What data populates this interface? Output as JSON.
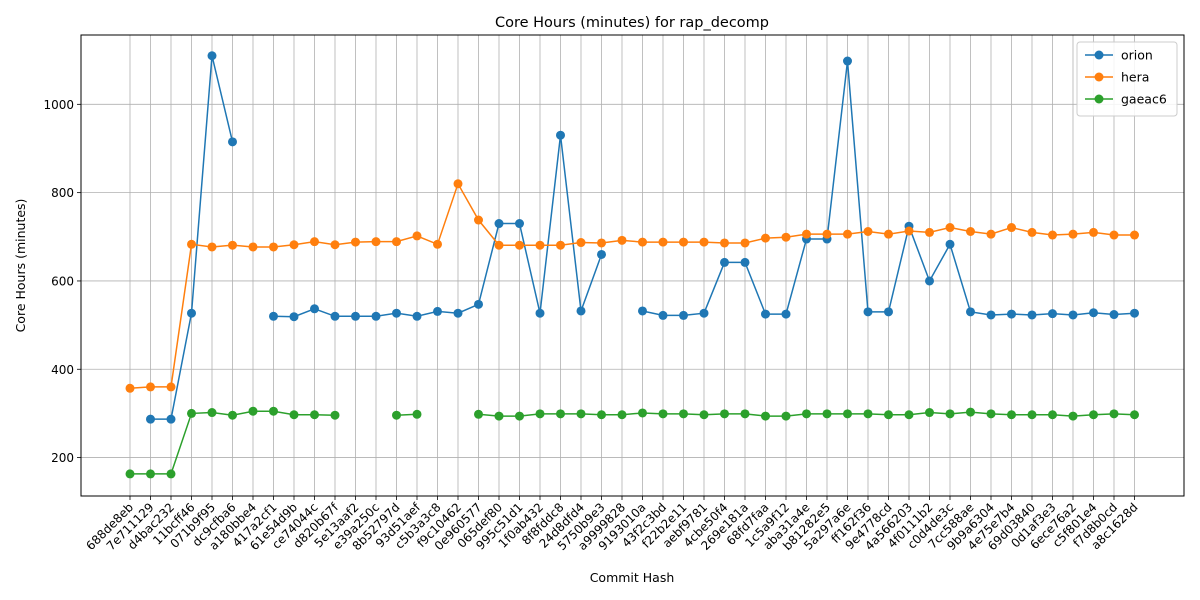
{
  "chart_data": {
    "type": "line",
    "title": "Core Hours (minutes) for rap_decomp",
    "xlabel": "Commit Hash",
    "ylabel": "Core Hours (minutes)",
    "ylim": [
      113,
      1157
    ],
    "yticks": [
      200,
      400,
      600,
      800,
      1000
    ],
    "grid": true,
    "legend_position": "top-right",
    "categories": [
      "688de8eb",
      "7e711129",
      "d4bac232",
      "11bcff46",
      "071b9f95",
      "dc9cfba6",
      "a180bbe4",
      "417a2cf1",
      "61e54d9b",
      "ce74044c",
      "d820b67f",
      "5e13aaf2",
      "e39a250c",
      "8b52797d",
      "93d51aef",
      "c5b3a3c8",
      "f9c10462",
      "0e960577",
      "065def80",
      "995c51d1",
      "1f0ab432",
      "8f8fddc8",
      "24d8dfd4",
      "5750b9e3",
      "a9999828",
      "9193010a",
      "43f2c3bd",
      "f22b2e11",
      "aebf9781",
      "4cbe50f4",
      "269e181a",
      "68fd7faa",
      "1c5a9f12",
      "aba31a4e",
      "b81282e5",
      "5a297a6e",
      "ff162f36",
      "9e4778cd",
      "4a566203",
      "4f0111b2",
      "c0d4de3c",
      "7cc588ae",
      "9b9a6304",
      "4e75e7b4",
      "69d03840",
      "0d1af3e3",
      "6ece76a2",
      "c5f801e4",
      "f7d8b0cd",
      "a8c1628d"
    ],
    "series": [
      {
        "name": "orion",
        "color": "#1f77b4",
        "values": [
          null,
          287,
          287,
          527,
          1110,
          915,
          null,
          520,
          519,
          537,
          520,
          520,
          520,
          527,
          520,
          531,
          527,
          547,
          730,
          730,
          527,
          930,
          532,
          660,
          null,
          532,
          522,
          522,
          527,
          642,
          642,
          525,
          525,
          695,
          695,
          1098,
          530,
          530,
          724,
          600,
          683,
          530,
          523,
          525,
          523,
          526,
          523,
          528,
          524,
          527
        ]
      },
      {
        "name": "hera",
        "color": "#ff7f0e",
        "values": [
          357,
          360,
          360,
          683,
          677,
          681,
          677,
          677,
          682,
          689,
          682,
          688,
          689,
          689,
          702,
          683,
          820,
          738,
          681,
          681,
          681,
          681,
          687,
          686,
          692,
          688,
          688,
          688,
          688,
          686,
          686,
          697,
          699,
          706,
          706,
          706,
          712,
          706,
          713,
          710,
          721,
          712,
          706,
          721,
          710,
          704,
          706,
          710,
          704,
          704
        ]
      },
      {
        "name": "gaeac6",
        "color": "#2ca02c",
        "values": [
          163,
          163,
          163,
          300,
          302,
          296,
          305,
          305,
          297,
          297,
          296,
          null,
          null,
          296,
          298,
          null,
          null,
          298,
          294,
          294,
          299,
          299,
          299,
          297,
          297,
          301,
          299,
          299,
          297,
          299,
          299,
          294,
          294,
          299,
          299,
          299,
          299,
          297,
          297,
          302,
          299,
          303,
          299,
          297,
          297,
          297,
          294,
          297,
          299,
          297
        ]
      }
    ]
  }
}
